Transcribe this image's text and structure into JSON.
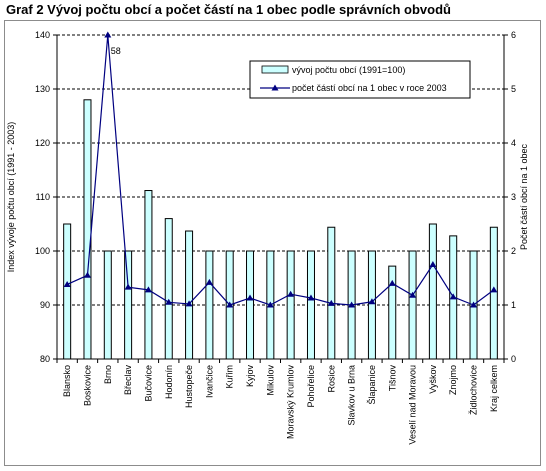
{
  "title": "Graf 2  Vývoj počtu obcí a počet částí na 1 obec podle správních obvodů",
  "chart_data": {
    "type": "bar",
    "categories": [
      "Blansko",
      "Boskovice",
      "Brno",
      "Břeclav",
      "Bučovice",
      "Hodonín",
      "Hustopeče",
      "Ivančice",
      "Kuřim",
      "Kyjov",
      "Mikulov",
      "Moravský Krumlov",
      "Pohořelice",
      "Rosice",
      "Slavkov u Brna",
      "Šlapanice",
      "Tišnov",
      "Veselí nad Moravou",
      "Vyškov",
      "Znojmo",
      "Židlochovice",
      "Kraj celkem"
    ],
    "series": [
      {
        "name": "vývoj počtu obcí (1991=100)",
        "type": "bar",
        "axis": "left",
        "values": [
          105,
          128,
          100,
          100,
          111.2,
          106,
          103.7,
          100,
          100,
          100,
          100,
          100,
          100,
          104.4,
          100,
          100,
          97.2,
          100,
          105,
          102.8,
          100,
          104.4
        ],
        "color": "#ccffff"
      },
      {
        "name": "počet částí obcí na 1 obec v roce 2003",
        "type": "line",
        "axis": "right",
        "values": [
          1.38,
          1.55,
          6.0,
          1.33,
          1.28,
          1.05,
          1.02,
          1.42,
          1.0,
          1.13,
          1.0,
          1.2,
          1.13,
          1.03,
          1.0,
          1.06,
          1.4,
          1.18,
          1.75,
          1.15,
          1.0,
          1.28
        ],
        "color": "#000080"
      }
    ],
    "annotation": "58",
    "ylabel": "Index vývoje počtu obcí (1991 - 2003)",
    "y2label": "Počet částí obcí na 1 obec",
    "ylim": [
      80,
      140
    ],
    "yticks": [
      80,
      90,
      100,
      110,
      120,
      130,
      140
    ],
    "y2lim": [
      0,
      6
    ],
    "y2ticks": [
      0,
      1,
      2,
      3,
      4,
      5,
      6
    ],
    "grid": true,
    "legend": "top-right"
  }
}
